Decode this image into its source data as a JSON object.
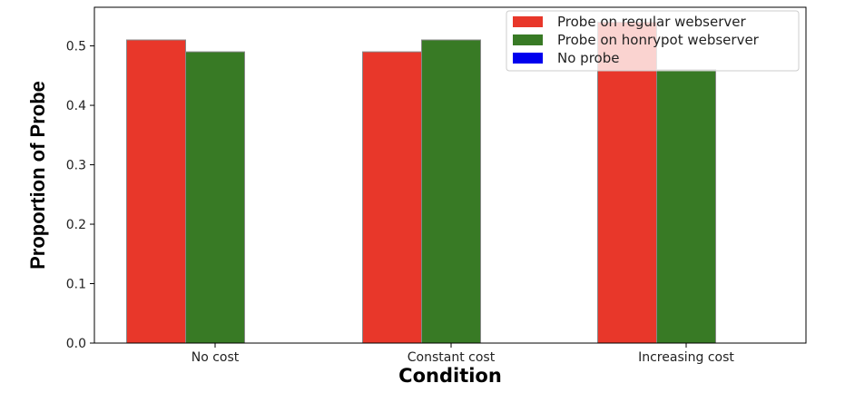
{
  "chart_data": {
    "type": "bar",
    "categories": [
      "No cost",
      "Constant cost",
      "Increasing cost"
    ],
    "series": [
      {
        "name": "Probe on regular webserver",
        "color": "#e8372a",
        "values": [
          0.51,
          0.49,
          0.54
        ]
      },
      {
        "name": "Probe on honrypot webserver",
        "color": "#387a25",
        "values": [
          0.49,
          0.51,
          0.46
        ]
      },
      {
        "name": "No probe",
        "color": "#0000ee",
        "values": [
          0.0,
          0.0,
          0.0
        ]
      }
    ],
    "title": "",
    "xlabel": "Condition",
    "ylabel": "Proportion of Probe",
    "ylim": [
      0.0,
      0.565
    ],
    "yticks": [
      "0.0",
      "0.1",
      "0.2",
      "0.3",
      "0.4",
      "0.5"
    ],
    "legend_position": "top-right",
    "grid": false
  }
}
